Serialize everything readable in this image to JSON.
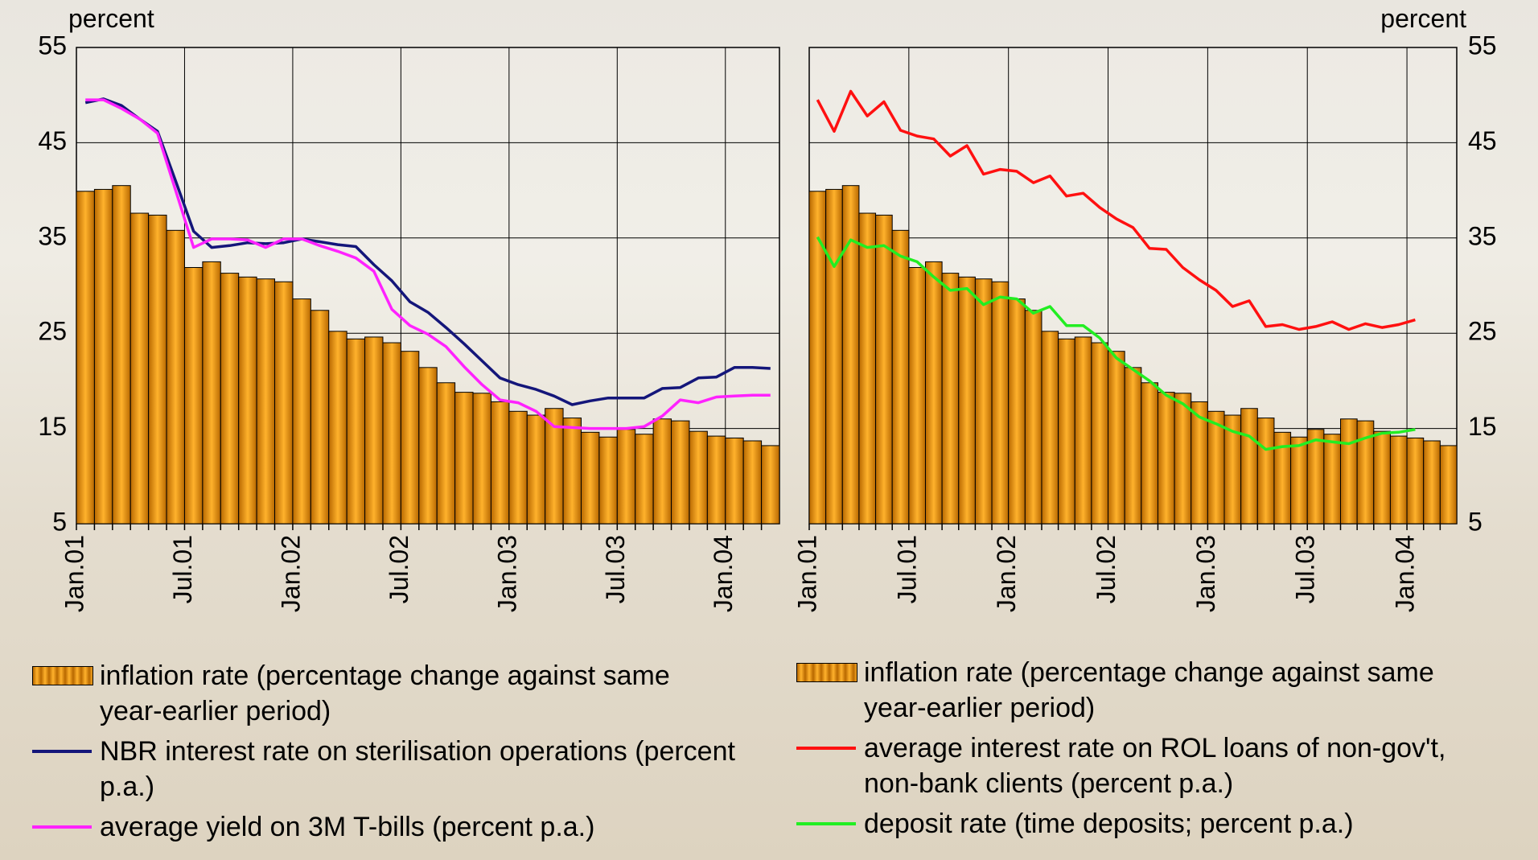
{
  "chart_data": [
    {
      "type": "combo",
      "ylabel": "percent",
      "y_axis_side": "left",
      "ylim": [
        5,
        55
      ],
      "yticks": [
        5,
        15,
        25,
        35,
        45,
        55
      ],
      "grid": true,
      "categories": [
        "Jan.01",
        null,
        null,
        null,
        null,
        null,
        "Jul.01",
        null,
        null,
        null,
        null,
        null,
        "Jan.02",
        null,
        null,
        null,
        null,
        null,
        "Jul.02",
        null,
        null,
        null,
        null,
        null,
        "Jan.03",
        null,
        null,
        null,
        null,
        null,
        "Jul.03",
        null,
        null,
        null,
        null,
        null,
        "Jan.04",
        null,
        null
      ],
      "series": [
        {
          "name": "inflation rate (percentage change against same year-earlier period)",
          "type": "bar",
          "color": "#f39c12",
          "values": [
            39.9,
            40.1,
            40.5,
            37.6,
            37.4,
            35.8,
            31.9,
            32.5,
            31.3,
            30.9,
            30.7,
            30.4,
            28.6,
            27.4,
            25.2,
            24.4,
            24.6,
            24.0,
            23.1,
            21.4,
            19.8,
            18.8,
            18.7,
            17.8,
            16.8,
            16.4,
            17.1,
            16.1,
            14.6,
            14.1,
            14.9,
            14.4,
            16.0,
            15.8,
            14.7,
            14.2,
            14.0,
            13.7,
            13.2
          ]
        },
        {
          "name": "NBR interest rate on sterilisation operations (percent p.a.)",
          "type": "line",
          "color": "#14167a",
          "values": [
            49.2,
            49.6,
            48.9,
            47.5,
            46.2,
            41,
            35.7,
            34,
            34.2,
            34.5,
            34.4,
            34.5,
            34.9,
            34.6,
            34.3,
            34.1,
            32.2,
            30.5,
            28.3,
            27.2,
            25.6,
            23.9,
            22.1,
            20.3,
            19.6,
            19.1,
            18.4,
            17.5,
            17.9,
            18.2,
            18.2,
            18.2,
            19.2,
            19.3,
            20.3,
            20.4,
            21.4,
            21.4,
            21.3
          ]
        },
        {
          "name": "average yield on 3M T-bills (percent p.a.)",
          "type": "line",
          "color": "#ff22ff",
          "values": [
            49.5,
            49.5,
            48.6,
            47.5,
            46,
            40,
            34,
            34.9,
            34.9,
            34.8,
            34,
            34.9,
            34.9,
            34.2,
            33.6,
            32.9,
            31.5,
            27.5,
            25.8,
            24.9,
            23.6,
            21.5,
            19.6,
            18,
            17.7,
            16.8,
            15.2,
            15.1,
            15,
            15,
            15,
            15.2,
            16.3,
            18,
            17.7,
            18.3,
            18.4,
            18.5,
            18.5
          ]
        }
      ]
    },
    {
      "type": "combo",
      "ylabel": "percent",
      "y_axis_side": "right",
      "ylim": [
        5,
        55
      ],
      "yticks": [
        5,
        15,
        25,
        35,
        45,
        55
      ],
      "grid": true,
      "categories": [
        "Jan.01",
        null,
        null,
        null,
        null,
        null,
        "Jul.01",
        null,
        null,
        null,
        null,
        null,
        "Jan.02",
        null,
        null,
        null,
        null,
        null,
        "Jul.02",
        null,
        null,
        null,
        null,
        null,
        "Jan.03",
        null,
        null,
        null,
        null,
        null,
        "Jul.03",
        null,
        null,
        null,
        null,
        null,
        "Jan.04",
        null,
        null
      ],
      "series": [
        {
          "name": "inflation rate (percentage change against same year-earlier period)",
          "type": "bar",
          "color": "#f39c12",
          "values": [
            39.9,
            40.1,
            40.5,
            37.6,
            37.4,
            35.8,
            31.9,
            32.5,
            31.3,
            30.9,
            30.7,
            30.4,
            28.6,
            27.4,
            25.2,
            24.4,
            24.6,
            24.0,
            23.1,
            21.4,
            19.8,
            18.8,
            18.7,
            17.8,
            16.8,
            16.4,
            17.1,
            16.1,
            14.6,
            14.1,
            14.9,
            14.4,
            16.0,
            15.8,
            14.7,
            14.2,
            14.0,
            13.7,
            13.2
          ]
        },
        {
          "name": "average interest rate on ROL loans of non-gov't, non-bank clients (percent p.a.)",
          "type": "line",
          "color": "#ff1010",
          "values": [
            49.5,
            46.2,
            50.4,
            47.8,
            49.3,
            46.3,
            45.7,
            45.4,
            43.6,
            44.7,
            41.7,
            42.2,
            42,
            40.8,
            41.5,
            39.4,
            39.7,
            38.2,
            37,
            36.1,
            33.9,
            33.8,
            31.9,
            30.6,
            29.5,
            27.8,
            28.4,
            25.7,
            25.9,
            25.4,
            25.7,
            26.2,
            25.4,
            26,
            25.6,
            25.9,
            26.4,
            null,
            null
          ]
        },
        {
          "name": "deposit rate (time deposits; percent p.a.)",
          "type": "line",
          "color": "#22ee22",
          "values": [
            35.1,
            32,
            34.8,
            34,
            34.2,
            33.1,
            32.5,
            30.9,
            29.5,
            29.7,
            28,
            28.8,
            28.6,
            27.1,
            27.8,
            25.8,
            25.8,
            24.5,
            22.4,
            21.2,
            20,
            18.5,
            17.6,
            16.2,
            15.5,
            14.7,
            14.2,
            12.8,
            13.1,
            13.2,
            13.8,
            13.6,
            13.4,
            14,
            14.5,
            14.6,
            14.9,
            null,
            null
          ]
        }
      ]
    }
  ]
}
